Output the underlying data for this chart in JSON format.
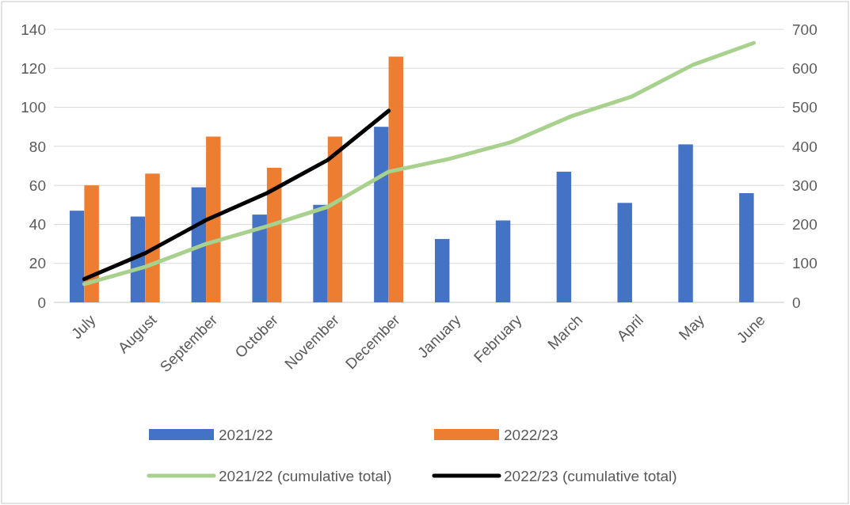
{
  "chart_data": {
    "type": "bar",
    "categories": [
      "July",
      "August",
      "September",
      "October",
      "November",
      "December",
      "January",
      "February",
      "March",
      "April",
      "May",
      "June"
    ],
    "series": [
      {
        "name": "2021/22",
        "color": "#4472c4",
        "values": [
          47,
          44,
          59,
          45,
          50,
          90,
          32.5,
          42,
          67,
          51,
          81,
          56
        ]
      },
      {
        "name": "2022/23",
        "color": "#ed7d31",
        "values": [
          60,
          66,
          85,
          69,
          85,
          126,
          null,
          null,
          null,
          null,
          null,
          null
        ]
      },
      {
        "name": "2021/22 (cumulative total)",
        "type": "line",
        "axis": "y2",
        "color": "#a9d18e",
        "values": [
          47,
          91,
          150,
          195,
          245,
          335,
          368,
          410,
          477,
          528,
          609,
          665
        ]
      },
      {
        "name": "2022/23 (cumulative total)",
        "type": "line",
        "axis": "y2",
        "color": "#000000",
        "values": [
          60,
          126,
          211,
          280,
          365,
          491,
          null,
          null,
          null,
          null,
          null,
          null
        ]
      }
    ],
    "ylim": [
      0,
      140
    ],
    "yticks": [
      0,
      20,
      40,
      60,
      80,
      100,
      120,
      140
    ],
    "y2lim": [
      0,
      700
    ],
    "y2ticks": [
      0,
      100,
      200,
      300,
      400,
      500,
      600,
      700
    ],
    "grid": "y",
    "legend": "bottom",
    "marker": "none",
    "line_style": "solid"
  }
}
